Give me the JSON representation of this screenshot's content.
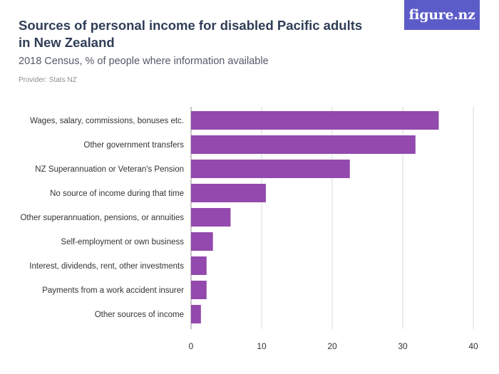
{
  "header": {
    "title": "Sources of personal income for disabled Pacific adults in New Zealand",
    "subtitle": "2018 Census, % of people where information available",
    "provider": "Provider: Stats NZ",
    "logo_text": "figure.nz"
  },
  "colors": {
    "bar": "#9349ad",
    "logo_bg": "#5c5cc9",
    "grid": "#d9d9d9",
    "title": "#2f3e57"
  },
  "chart_data": {
    "type": "bar",
    "orientation": "horizontal",
    "title": "Sources of personal income for disabled Pacific adults in New Zealand",
    "subtitle": "2018 Census, % of people where information available",
    "xlabel": "",
    "ylabel": "",
    "xlim": [
      0,
      40
    ],
    "ticks": [
      0,
      10,
      20,
      30,
      40
    ],
    "grid": true,
    "categories": [
      "Wages, salary, commissions, bonuses etc.",
      "Other government transfers",
      "NZ Superannuation or Veteran's Pension",
      "No source of income during that time",
      "Other superannuation, pensions, or annuities",
      "Self-employment or own business",
      "Interest, dividends, rent, other investments",
      "Payments from a work accident insurer",
      "Other sources of income"
    ],
    "values": [
      35.1,
      31.8,
      22.5,
      10.6,
      5.6,
      3.1,
      2.2,
      2.2,
      1.4
    ]
  }
}
